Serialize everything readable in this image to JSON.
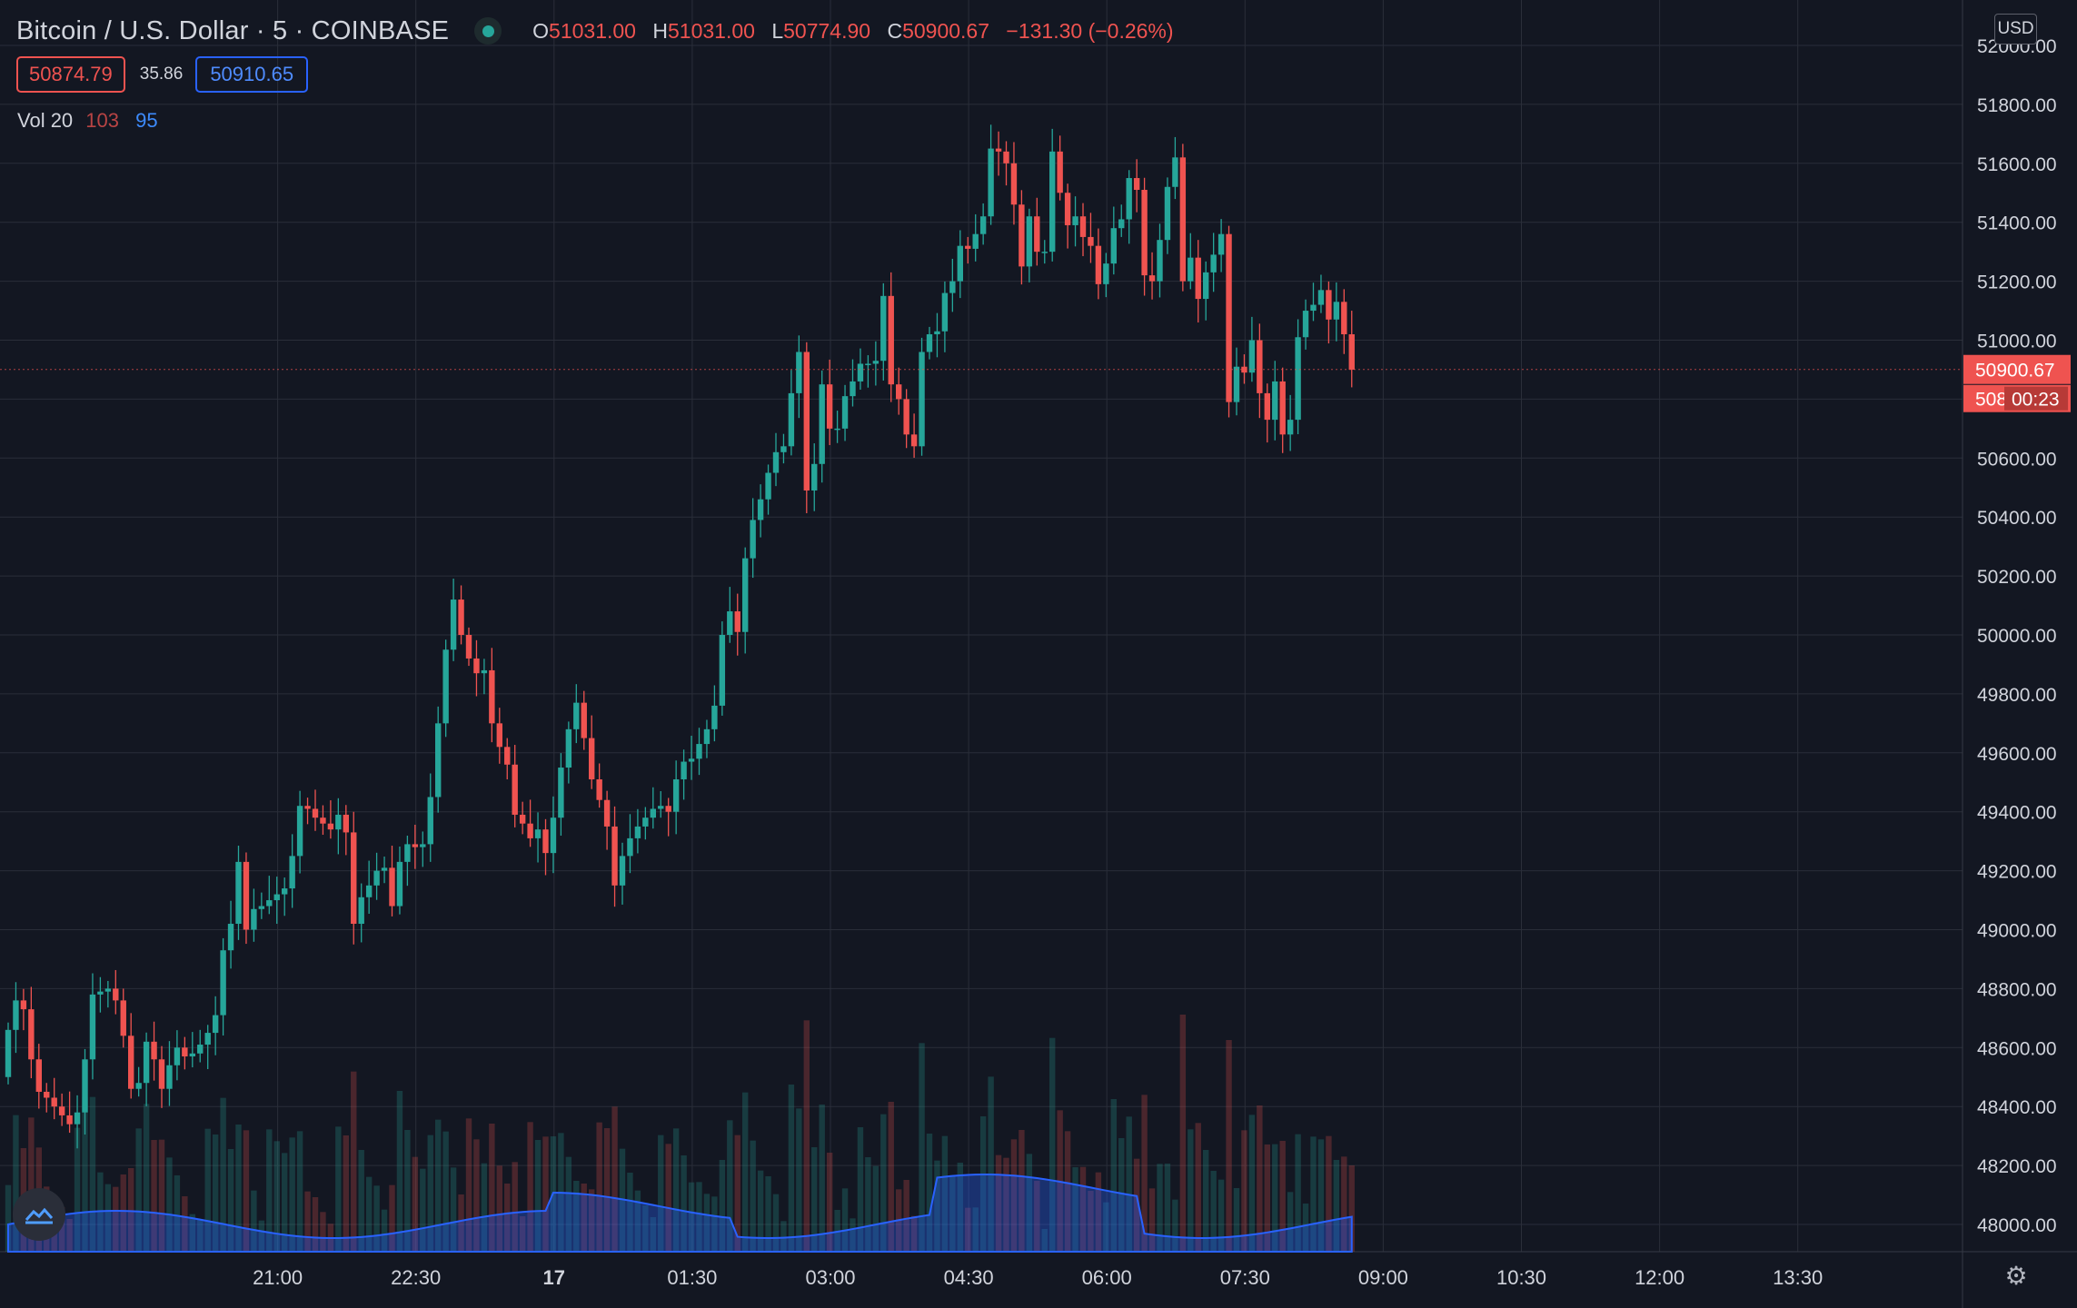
{
  "header": {
    "symbol": "Bitcoin / U.S. Dollar · 5 · COINBASE",
    "ohlc": {
      "o_label": "O",
      "o": "51031.00",
      "h_label": "H",
      "h": "51031.00",
      "l_label": "L",
      "l": "50774.90",
      "c_label": "C",
      "c": "50900.67",
      "change": "−131.30 (−0.26%)"
    },
    "bid": "50874.79",
    "spread": "35.86",
    "ask": "50910.65",
    "volume_study": {
      "name": "Vol 20",
      "value_a": "103",
      "value_b": "95"
    },
    "currency_button": "USD"
  },
  "price_labels": {
    "last_price": "50900.67",
    "countdown": "00:23",
    "hidden_partial": "508"
  },
  "icons": {
    "settings": "gear-icon",
    "logo": "tradingview-cloud-icon"
  },
  "colors": {
    "background": "#131722",
    "up": "#26a69a",
    "down": "#ef5350",
    "volume_ma": "#2962ff",
    "grid": "#2a2e39"
  },
  "chart_data": {
    "type": "candlestick",
    "interval": "5",
    "y_ticks": [
      48000,
      48200,
      48400,
      48600,
      48800,
      49000,
      49200,
      49400,
      49600,
      49800,
      50000,
      50200,
      50400,
      50600,
      50800,
      51000,
      51200,
      51400,
      51600,
      51800,
      52000
    ],
    "y_tick_labels": [
      "48000.00",
      "48200.00",
      "48400.00",
      "48600.00",
      "48800.00",
      "49000.00",
      "49200.00",
      "49400.00",
      "49600.00",
      "49800.00",
      "50000.00",
      "50200.00",
      "50400.00",
      "50600.00",
      "50800.00",
      "51000.00",
      "51200.00",
      "51400.00",
      "51600.00",
      "51800.00",
      "52000.00"
    ],
    "ylim": [
      47980,
      52040
    ],
    "x_ticks": [
      "21:00",
      "22:30",
      "17",
      "01:30",
      "03:00",
      "04:30",
      "06:00",
      "07:30",
      "09:00",
      "10:30",
      "12:00",
      "13:30"
    ],
    "x_tick_bars": [
      18,
      36,
      54,
      72,
      90,
      108,
      126,
      144,
      162,
      180,
      198,
      216
    ],
    "bars_visible": 228,
    "closes": [
      48660,
      48760,
      48730,
      48560,
      48450,
      48430,
      48400,
      48370,
      48340,
      48380,
      48560,
      48780,
      48790,
      48800,
      48760,
      48640,
      48460,
      48480,
      48620,
      48560,
      48460,
      48540,
      48600,
      48570,
      48580,
      48610,
      48650,
      48710,
      48930,
      49020,
      49230,
      49000,
      49070,
      49080,
      49100,
      49120,
      49140,
      49250,
      49420,
      49410,
      49380,
      49360,
      49340,
      49390,
      49330,
      49020,
      49110,
      49150,
      49200,
      49210,
      49080,
      49230,
      49290,
      49280,
      49290,
      49450,
      49700,
      49950,
      50120,
      50000,
      49920,
      49870,
      49880,
      49700,
      49620,
      49560,
      49390,
      49360,
      49310,
      49340,
      49260,
      49380,
      49550,
      49680,
      49770,
      49650,
      49510,
      49440,
      49350,
      49150,
      49250,
      49310,
      49350,
      49380,
      49410,
      49420,
      49400,
      49510,
      49570,
      49580,
      49630,
      49680,
      49760,
      50000,
      50080,
      50010,
      50260,
      50390,
      50460,
      50550,
      50620,
      50640,
      50820,
      50960,
      50490,
      50580,
      50850,
      50700,
      50700,
      50810,
      50860,
      50920,
      50920,
      50930,
      51150,
      50850,
      50800,
      50680,
      50640,
      50960,
      51020,
      51030,
      51160,
      51200,
      51320,
      51310,
      51360,
      51420,
      51650,
      51640,
      51600,
      51460,
      51250,
      51420,
      51300,
      51300,
      51640,
      51500,
      51390,
      51420,
      51350,
      51320,
      51190,
      51260,
      51380,
      51410,
      51550,
      51510,
      51220,
      51200,
      51340,
      51520,
      51620,
      51200,
      51280,
      51140,
      51230,
      51290,
      51360,
      50790,
      50910,
      50890,
      51000,
      50820,
      50730,
      50860,
      50680,
      50730,
      51010,
      51100,
      51120,
      51170,
      51070,
      51130,
      51020,
      50900
    ],
    "bars_per_x_label": 18,
    "volume_axis_hidden": true,
    "last_price": 50900.67
  }
}
